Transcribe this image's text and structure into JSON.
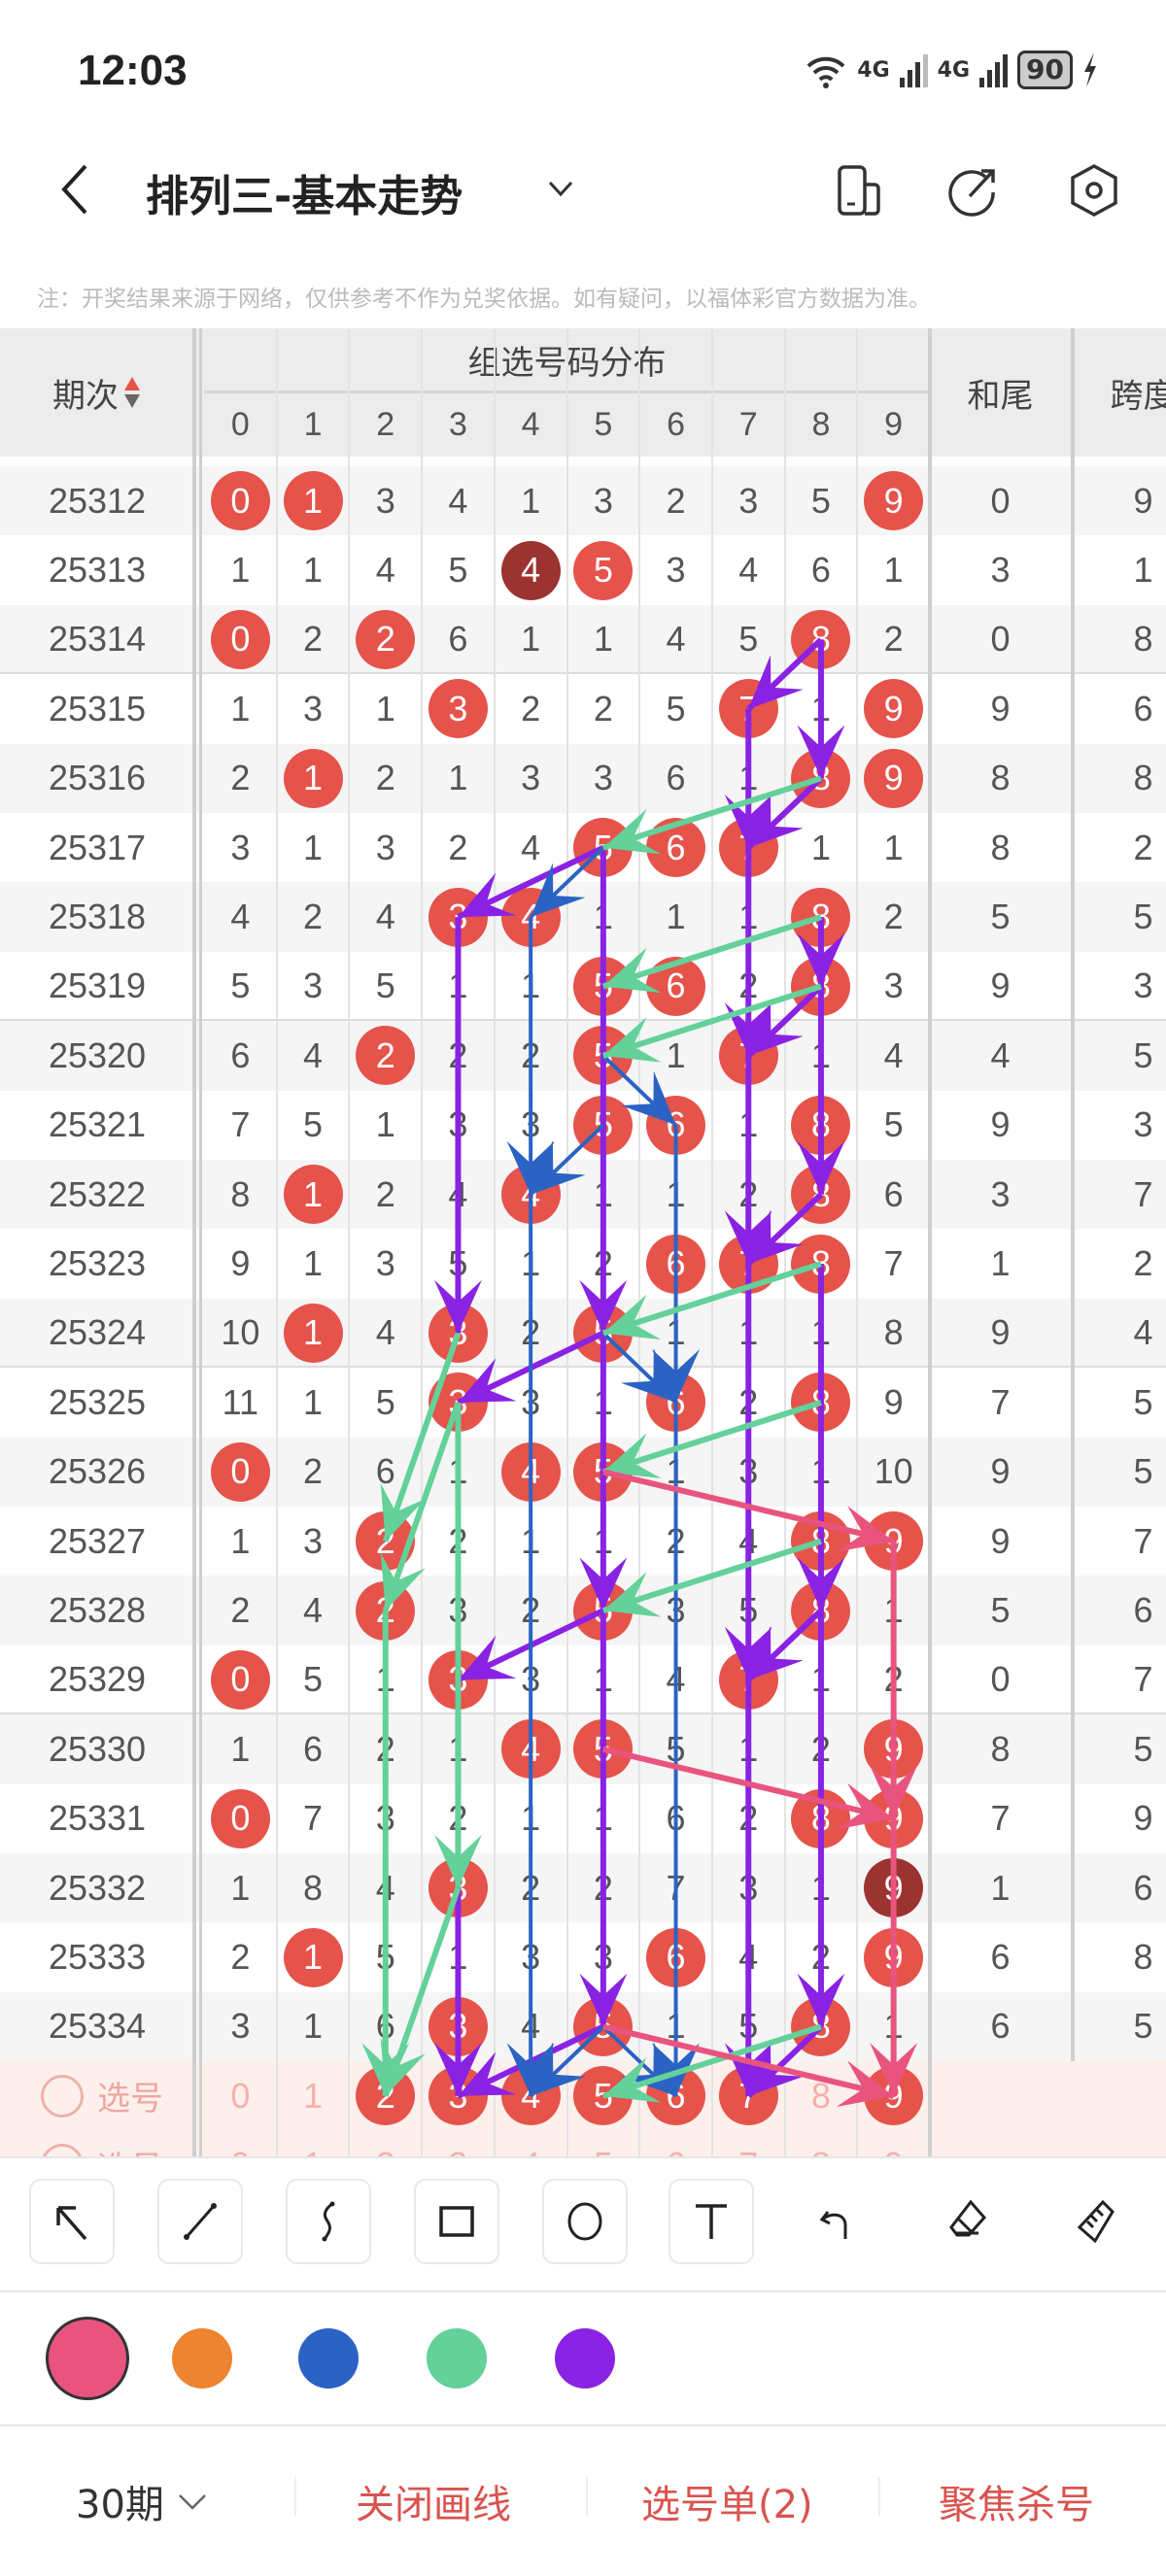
{
  "status_bar": {
    "time": "12:03",
    "network1": "4G",
    "network2": "4G",
    "battery": "90"
  },
  "header": {
    "title": "排列三-基本走势",
    "icons": [
      "back-icon",
      "chevron-down-icon",
      "device-icon",
      "share-icon",
      "settings-icon"
    ]
  },
  "note": "注：开奖结果来源于网络，仅供参考不作为兑奖依据。如有疑问，以福体彩官方数据为准。",
  "table": {
    "col_period": "期次",
    "group_header": "组选号码分布",
    "digits": [
      "0",
      "1",
      "2",
      "3",
      "4",
      "5",
      "6",
      "7",
      "8",
      "9"
    ],
    "col_hewei": "和尾",
    "col_kuadu": "跨度",
    "rows": [
      {
        "period": "25312",
        "values": [
          0,
          1,
          3,
          4,
          1,
          3,
          2,
          3,
          5,
          9
        ],
        "balls": [
          0,
          1,
          9
        ],
        "dark": [],
        "hewei": "0",
        "kuadu": "9"
      },
      {
        "period": "25313",
        "values": [
          1,
          1,
          4,
          5,
          4,
          5,
          3,
          4,
          6,
          1
        ],
        "balls": [
          4,
          5
        ],
        "dark": [
          4
        ],
        "hewei": "3",
        "kuadu": "1"
      },
      {
        "period": "25314",
        "values": [
          0,
          2,
          2,
          6,
          1,
          1,
          4,
          5,
          8,
          2
        ],
        "balls": [
          0,
          2,
          8
        ],
        "dark": [],
        "hewei": "0",
        "kuadu": "8"
      },
      {
        "period": "25315",
        "values": [
          1,
          3,
          1,
          3,
          2,
          2,
          5,
          7,
          1,
          9
        ],
        "balls": [
          3,
          7,
          9
        ],
        "dark": [],
        "hewei": "9",
        "kuadu": "6"
      },
      {
        "period": "25316",
        "values": [
          2,
          1,
          2,
          1,
          3,
          3,
          6,
          1,
          8,
          9
        ],
        "balls": [
          1,
          8,
          9
        ],
        "dark": [],
        "hewei": "8",
        "kuadu": "8"
      },
      {
        "period": "25317",
        "values": [
          3,
          1,
          3,
          2,
          4,
          5,
          6,
          7,
          1,
          1
        ],
        "balls": [
          5,
          6,
          7
        ],
        "dark": [],
        "hewei": "8",
        "kuadu": "2"
      },
      {
        "period": "25318",
        "values": [
          4,
          2,
          4,
          3,
          4,
          1,
          1,
          1,
          8,
          2
        ],
        "balls": [
          3,
          4,
          8
        ],
        "dark": [],
        "hewei": "5",
        "kuadu": "5"
      },
      {
        "period": "25319",
        "values": [
          5,
          3,
          5,
          1,
          1,
          5,
          6,
          2,
          8,
          3
        ],
        "balls": [
          5,
          6,
          8
        ],
        "dark": [],
        "hewei": "9",
        "kuadu": "3"
      },
      {
        "period": "25320",
        "values": [
          6,
          4,
          2,
          2,
          2,
          5,
          1,
          7,
          1,
          4
        ],
        "balls": [
          2,
          5,
          7
        ],
        "dark": [],
        "hewei": "4",
        "kuadu": "5"
      },
      {
        "period": "25321",
        "values": [
          7,
          5,
          1,
          3,
          3,
          5,
          6,
          1,
          8,
          5
        ],
        "balls": [
          5,
          6,
          8
        ],
        "dark": [],
        "hewei": "9",
        "kuadu": "3"
      },
      {
        "period": "25322",
        "values": [
          8,
          1,
          2,
          4,
          4,
          1,
          1,
          2,
          8,
          6
        ],
        "balls": [
          1,
          4,
          8
        ],
        "dark": [],
        "hewei": "3",
        "kuadu": "7"
      },
      {
        "period": "25323",
        "values": [
          9,
          1,
          3,
          5,
          1,
          2,
          6,
          7,
          8,
          7
        ],
        "balls": [
          6,
          7,
          8
        ],
        "dark": [],
        "hewei": "1",
        "kuadu": "2"
      },
      {
        "period": "25324",
        "values": [
          10,
          1,
          4,
          3,
          2,
          5,
          1,
          1,
          1,
          8
        ],
        "balls": [
          1,
          3,
          5
        ],
        "dark": [],
        "hewei": "9",
        "kuadu": "4"
      },
      {
        "period": "25325",
        "values": [
          11,
          1,
          5,
          3,
          3,
          1,
          6,
          2,
          8,
          9
        ],
        "balls": [
          3,
          6,
          8
        ],
        "dark": [],
        "hewei": "7",
        "kuadu": "5"
      },
      {
        "period": "25326",
        "values": [
          0,
          2,
          6,
          1,
          4,
          5,
          1,
          3,
          1,
          10
        ],
        "balls": [
          0,
          4,
          5
        ],
        "dark": [],
        "hewei": "9",
        "kuadu": "5"
      },
      {
        "period": "25327",
        "values": [
          1,
          3,
          2,
          2,
          1,
          1,
          2,
          4,
          8,
          9
        ],
        "balls": [
          2,
          8,
          9
        ],
        "dark": [],
        "hewei": "9",
        "kuadu": "7"
      },
      {
        "period": "25328",
        "values": [
          2,
          4,
          2,
          3,
          2,
          5,
          3,
          5,
          8,
          1
        ],
        "balls": [
          2,
          5,
          8
        ],
        "dark": [],
        "hewei": "5",
        "kuadu": "6"
      },
      {
        "period": "25329",
        "values": [
          0,
          5,
          1,
          3,
          3,
          1,
          4,
          7,
          1,
          2
        ],
        "balls": [
          0,
          3,
          7
        ],
        "dark": [],
        "hewei": "0",
        "kuadu": "7"
      },
      {
        "period": "25330",
        "values": [
          1,
          6,
          2,
          1,
          4,
          5,
          5,
          1,
          2,
          9
        ],
        "balls": [
          4,
          5,
          9
        ],
        "dark": [],
        "hewei": "8",
        "kuadu": "5"
      },
      {
        "period": "25331",
        "values": [
          0,
          7,
          3,
          2,
          1,
          1,
          6,
          2,
          8,
          9
        ],
        "balls": [
          0,
          8,
          9
        ],
        "dark": [],
        "hewei": "7",
        "kuadu": "9"
      },
      {
        "period": "25332",
        "values": [
          1,
          8,
          4,
          3,
          2,
          2,
          7,
          3,
          1,
          9
        ],
        "balls": [
          3,
          9
        ],
        "dark": [
          9
        ],
        "hewei": "1",
        "kuadu": "6"
      },
      {
        "period": "25333",
        "values": [
          2,
          1,
          5,
          1,
          3,
          3,
          6,
          4,
          2,
          9
        ],
        "balls": [
          1,
          6,
          9
        ],
        "dark": [],
        "hewei": "6",
        "kuadu": "8"
      },
      {
        "period": "25334",
        "values": [
          3,
          1,
          6,
          3,
          4,
          5,
          1,
          5,
          8,
          1
        ],
        "balls": [
          3,
          5,
          8
        ],
        "dark": [],
        "hewei": "6",
        "kuadu": "5"
      }
    ],
    "pick_rows": [
      {
        "label": "选号",
        "values": [
          "0",
          "1",
          "2",
          "3",
          "4",
          "5",
          "6",
          "7",
          "8",
          "9"
        ],
        "selected": [
          2,
          3,
          4,
          5,
          6,
          7,
          9
        ]
      },
      {
        "label": "选号",
        "values": [
          "0",
          "1",
          "2",
          "3",
          "4",
          "5",
          "6",
          "7",
          "8",
          "9"
        ],
        "selected": []
      }
    ]
  },
  "drawings": [
    {
      "color": "purple",
      "from": [
        "25314",
        8
      ],
      "to": [
        "25315",
        7
      ]
    },
    {
      "color": "purple",
      "from": [
        "25314",
        8
      ],
      "to": [
        "25316",
        8
      ]
    },
    {
      "color": "purple",
      "from": [
        "25315",
        7
      ],
      "to": [
        "25317",
        7
      ]
    },
    {
      "color": "purple",
      "from": [
        "25316",
        8
      ],
      "to": [
        "25317",
        7
      ]
    },
    {
      "color": "purple",
      "from": [
        "25317",
        5
      ],
      "to": [
        "25318",
        3
      ]
    },
    {
      "color": "purple",
      "from": [
        "25318",
        3
      ],
      "to": [
        "25324",
        3
      ]
    },
    {
      "color": "purple",
      "from": [
        "25318",
        8
      ],
      "to": [
        "25319",
        8
      ]
    },
    {
      "color": "purple",
      "from": [
        "25317",
        5
      ],
      "to": [
        "25324",
        5
      ]
    },
    {
      "color": "purple",
      "from": [
        "25317",
        7
      ],
      "to": [
        "25320",
        7
      ]
    },
    {
      "color": "purple",
      "from": [
        "25319",
        8
      ],
      "to": [
        "25320",
        7
      ]
    },
    {
      "color": "purple",
      "from": [
        "25319",
        8
      ],
      "to": [
        "25322",
        8
      ]
    },
    {
      "color": "purple",
      "from": [
        "25320",
        7
      ],
      "to": [
        "25323",
        7
      ]
    },
    {
      "color": "purple",
      "from": [
        "25322",
        8
      ],
      "to": [
        "25323",
        7
      ]
    },
    {
      "color": "purple",
      "from": [
        "25324",
        5
      ],
      "to": [
        "25325",
        3
      ]
    },
    {
      "color": "purple",
      "from": [
        "25324",
        5
      ],
      "to": [
        "25328",
        5
      ]
    },
    {
      "color": "purple",
      "from": [
        "25323",
        8
      ],
      "to": [
        "25328",
        8
      ]
    },
    {
      "color": "purple",
      "from": [
        "25323",
        7
      ],
      "to": [
        "25329",
        7
      ]
    },
    {
      "color": "purple",
      "from": [
        "25328",
        8
      ],
      "to": [
        "25329",
        7
      ]
    },
    {
      "color": "purple",
      "from": [
        "25328",
        5
      ],
      "to": [
        "25329",
        3
      ]
    },
    {
      "color": "purple",
      "from": [
        "25329",
        3
      ],
      "to": [
        "选号",
        3
      ]
    },
    {
      "color": "purple",
      "from": [
        "25328",
        5
      ],
      "to": [
        "25334",
        5
      ]
    },
    {
      "color": "purple",
      "from": [
        "25328",
        8
      ],
      "to": [
        "25334",
        8
      ]
    },
    {
      "color": "purple",
      "from": [
        "25329",
        7
      ],
      "to": [
        "选号",
        7
      ]
    },
    {
      "color": "purple",
      "from": [
        "25334",
        8
      ],
      "to": [
        "选号",
        7
      ]
    },
    {
      "color": "purple",
      "from": [
        "25334",
        5
      ],
      "to": [
        "选号",
        3
      ]
    },
    {
      "color": "blue",
      "from": [
        "25317",
        5
      ],
      "to": [
        "25318",
        4
      ]
    },
    {
      "color": "blue",
      "from": [
        "25318",
        4
      ],
      "to": [
        "25322",
        4
      ]
    },
    {
      "color": "blue",
      "from": [
        "25320",
        5
      ],
      "to": [
        "25321",
        6
      ]
    },
    {
      "color": "blue",
      "from": [
        "25321",
        5
      ],
      "to": [
        "25322",
        4
      ]
    },
    {
      "color": "blue",
      "from": [
        "25321",
        6
      ],
      "to": [
        "25325",
        6
      ]
    },
    {
      "color": "blue",
      "from": [
        "25324",
        5
      ],
      "to": [
        "25325",
        6
      ]
    },
    {
      "color": "blue",
      "from": [
        "25322",
        4
      ],
      "to": [
        "选号",
        4
      ]
    },
    {
      "color": "blue",
      "from": [
        "25325",
        6
      ],
      "to": [
        "选号",
        6
      ]
    },
    {
      "color": "blue",
      "from": [
        "25334",
        5
      ],
      "to": [
        "选号",
        4
      ]
    },
    {
      "color": "blue",
      "from": [
        "25334",
        5
      ],
      "to": [
        "选号",
        6
      ]
    },
    {
      "color": "green",
      "from": [
        "25316",
        8
      ],
      "to": [
        "25317",
        5
      ]
    },
    {
      "color": "green",
      "from": [
        "25318",
        8
      ],
      "to": [
        "25319",
        5
      ]
    },
    {
      "color": "green",
      "from": [
        "25319",
        8
      ],
      "to": [
        "25320",
        5
      ]
    },
    {
      "color": "green",
      "from": [
        "25323",
        8
      ],
      "to": [
        "25324",
        5
      ]
    },
    {
      "color": "green",
      "from": [
        "25325",
        8
      ],
      "to": [
        "25326",
        5
      ]
    },
    {
      "color": "green",
      "from": [
        "25324",
        3
      ],
      "to": [
        "25327",
        2
      ]
    },
    {
      "color": "green",
      "from": [
        "25325",
        3
      ],
      "to": [
        "25328",
        2
      ]
    },
    {
      "color": "green",
      "from": [
        "25325",
        3
      ],
      "to": [
        "25332",
        3
      ]
    },
    {
      "color": "green",
      "from": [
        "25327",
        8
      ],
      "to": [
        "25328",
        5
      ]
    },
    {
      "color": "green",
      "from": [
        "25328",
        2
      ],
      "to": [
        "选号",
        2
      ]
    },
    {
      "color": "green",
      "from": [
        "25332",
        3
      ],
      "to": [
        "选号",
        2
      ]
    },
    {
      "color": "green",
      "from": [
        "25334",
        8
      ],
      "to": [
        "选号",
        5
      ]
    },
    {
      "color": "pink",
      "from": [
        "25326",
        5
      ],
      "to": [
        "25327",
        9
      ]
    },
    {
      "color": "pink",
      "from": [
        "25327",
        9
      ],
      "to": [
        "25331",
        9
      ]
    },
    {
      "color": "pink",
      "from": [
        "25330",
        5
      ],
      "to": [
        "25331",
        9
      ]
    },
    {
      "color": "pink",
      "from": [
        "25331",
        9
      ],
      "to": [
        "选号",
        9
      ]
    },
    {
      "color": "pink",
      "from": [
        "25334",
        5
      ],
      "to": [
        "选号",
        9
      ]
    }
  ],
  "tools": [
    "arrow-tool",
    "line-tool",
    "freehand-tool",
    "rectangle-tool",
    "circle-tool",
    "text-tool",
    "undo",
    "eraser",
    "clear-all"
  ],
  "colors": {
    "pink": "#e9547f",
    "orange": "#ee8330",
    "blue": "#2b63c4",
    "green": "#63d199",
    "purple": "#8a22e3",
    "ball": "#e5534b",
    "ball_dark": "#9b3330",
    "accent": "#d9534f"
  },
  "palette": [
    "pink",
    "orange",
    "blue",
    "green",
    "purple"
  ],
  "selected_color": "pink",
  "bottom_bar": {
    "period_select": "30期",
    "close_drawing": "关闭画线",
    "pick_list": "选号单(2)",
    "focus_kill": "聚焦杀号"
  }
}
